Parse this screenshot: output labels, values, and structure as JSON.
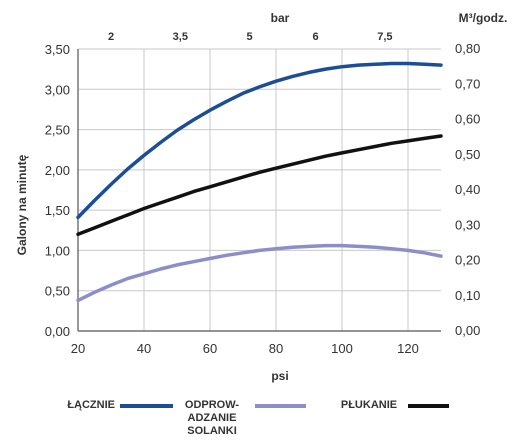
{
  "chart_data": {
    "type": "line",
    "xlabel": "psi",
    "ylabel": "Galony na minutę",
    "top_axis_label": "bar",
    "right_axis_unit": "M³/godz.",
    "xlim": [
      20,
      130
    ],
    "ylim": [
      0,
      3.5
    ],
    "y2lim": [
      0,
      0.8
    ],
    "grid": true,
    "legend_placement": "bottom",
    "x_ticks": [
      {
        "value": 20,
        "label": "20"
      },
      {
        "value": 40,
        "label": "40"
      },
      {
        "value": 60,
        "label": "60"
      },
      {
        "value": 80,
        "label": "80"
      },
      {
        "value": 100,
        "label": "100"
      },
      {
        "value": 120,
        "label": "120"
      }
    ],
    "top_ticks": [
      {
        "value": 30,
        "label": "2"
      },
      {
        "value": 51,
        "label": "3,5"
      },
      {
        "value": 72,
        "label": "5"
      },
      {
        "value": 92,
        "label": "6"
      },
      {
        "value": 113,
        "label": "7,5"
      }
    ],
    "y_ticks": [
      {
        "value": 0,
        "label": "0,00"
      },
      {
        "value": 0.5,
        "label": "0,50"
      },
      {
        "value": 1.0,
        "label": "1,00"
      },
      {
        "value": 1.5,
        "label": "1,50"
      },
      {
        "value": 2.0,
        "label": "2,00"
      },
      {
        "value": 2.5,
        "label": "2,50"
      },
      {
        "value": 3.0,
        "label": "3,00"
      },
      {
        "value": 3.5,
        "label": "3,50"
      }
    ],
    "y2_ticks": [
      {
        "value": 0.0,
        "label": "0,00"
      },
      {
        "value": 0.1,
        "label": "0,10"
      },
      {
        "value": 0.2,
        "label": "0,20"
      },
      {
        "value": 0.3,
        "label": "0,30"
      },
      {
        "value": 0.4,
        "label": "0,40"
      },
      {
        "value": 0.5,
        "label": "0,50"
      },
      {
        "value": 0.6,
        "label": "0,60"
      },
      {
        "value": 0.7,
        "label": "0,70"
      },
      {
        "value": 0.8,
        "label": "0,80"
      }
    ],
    "x": [
      20,
      25,
      30,
      35,
      40,
      45,
      50,
      55,
      60,
      65,
      70,
      75,
      80,
      85,
      90,
      95,
      100,
      105,
      110,
      115,
      120,
      125,
      130
    ],
    "series": [
      {
        "name": "ŁĄCZNIE",
        "color": "#1c4e96",
        "values": [
          1.41,
          1.62,
          1.82,
          2.01,
          2.18,
          2.34,
          2.49,
          2.62,
          2.74,
          2.85,
          2.95,
          3.03,
          3.1,
          3.16,
          3.21,
          3.25,
          3.28,
          3.3,
          3.31,
          3.32,
          3.32,
          3.31,
          3.3
        ]
      },
      {
        "name": "ODPROW-\nADZANIE\nSOLANKI",
        "color": "#8b8ec8",
        "values": [
          0.38,
          0.48,
          0.57,
          0.65,
          0.71,
          0.77,
          0.82,
          0.86,
          0.9,
          0.94,
          0.97,
          1.0,
          1.02,
          1.04,
          1.05,
          1.06,
          1.06,
          1.05,
          1.04,
          1.02,
          1.0,
          0.97,
          0.93
        ]
      },
      {
        "name": "PŁUKANIE",
        "color": "#111111",
        "values": [
          1.2,
          1.28,
          1.36,
          1.44,
          1.52,
          1.59,
          1.66,
          1.73,
          1.79,
          1.85,
          1.91,
          1.97,
          2.02,
          2.07,
          2.12,
          2.17,
          2.21,
          2.25,
          2.29,
          2.33,
          2.36,
          2.39,
          2.42
        ]
      }
    ]
  }
}
